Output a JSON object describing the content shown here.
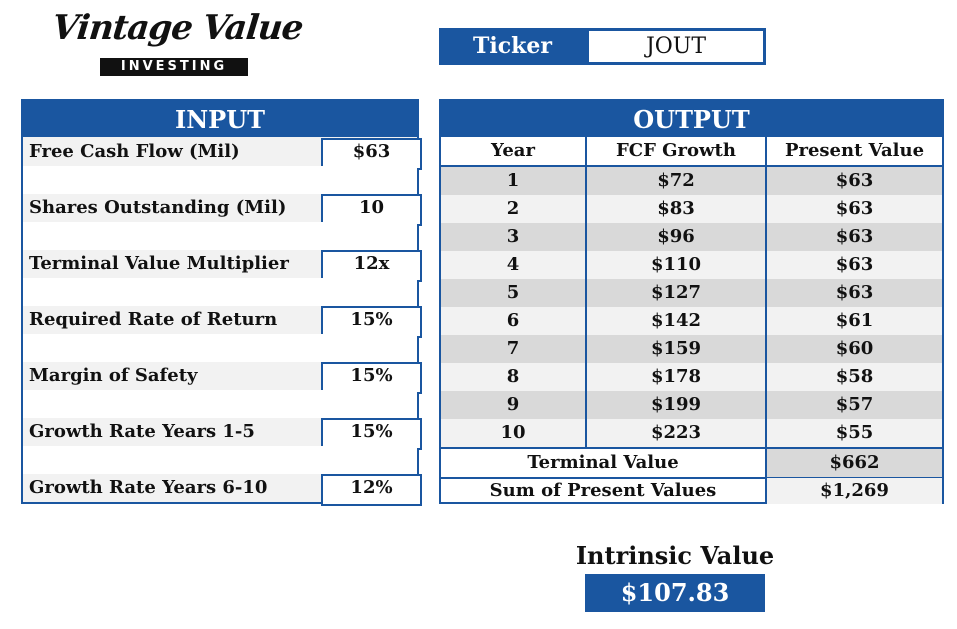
{
  "logo": {
    "script": "Vintage Value",
    "band": "INVESTING"
  },
  "ticker": {
    "label": "Ticker",
    "value": "JOUT"
  },
  "input": {
    "title": "INPUT",
    "rows": [
      {
        "label": "Free Cash Flow (Mil)",
        "value": "$63"
      },
      {
        "label": "Shares Outstanding (Mil)",
        "value": "10"
      },
      {
        "label": "Terminal Value Multiplier",
        "value": "12x"
      },
      {
        "label": "Required Rate of Return",
        "value": "15%"
      },
      {
        "label": "Margin of Safety",
        "value": "15%"
      },
      {
        "label": "Growth Rate Years 1-5",
        "value": "15%"
      },
      {
        "label": "Growth Rate Years 6-10",
        "value": "12%"
      }
    ]
  },
  "output": {
    "title": "OUTPUT",
    "columns": [
      "Year",
      "FCF Growth",
      "Present Value"
    ],
    "rows": [
      {
        "year": "1",
        "fcf": "$72",
        "pv": "$63"
      },
      {
        "year": "2",
        "fcf": "$83",
        "pv": "$63"
      },
      {
        "year": "3",
        "fcf": "$96",
        "pv": "$63"
      },
      {
        "year": "4",
        "fcf": "$110",
        "pv": "$63"
      },
      {
        "year": "5",
        "fcf": "$127",
        "pv": "$63"
      },
      {
        "year": "6",
        "fcf": "$142",
        "pv": "$61"
      },
      {
        "year": "7",
        "fcf": "$159",
        "pv": "$60"
      },
      {
        "year": "8",
        "fcf": "$178",
        "pv": "$58"
      },
      {
        "year": "9",
        "fcf": "$199",
        "pv": "$57"
      },
      {
        "year": "10",
        "fcf": "$223",
        "pv": "$55"
      }
    ],
    "terminal_label": "Terminal Value",
    "terminal_value": "$662",
    "sum_label": "Sum of Present Values",
    "sum_value": "$1,269"
  },
  "intrinsic": {
    "label": "Intrinsic Value",
    "value": "$107.83"
  },
  "colors": {
    "accent": "#1a56a0",
    "shade": "#d9d9d9",
    "light": "#f2f2f2"
  }
}
